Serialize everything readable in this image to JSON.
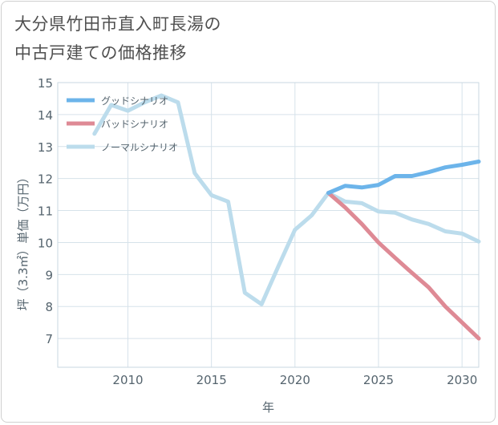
{
  "title_lines": [
    "大分県竹田市直入町長湯の",
    "中古戸建ての価格推移"
  ],
  "chart_data": {
    "type": "line",
    "title": "大分県竹田市直入町長湯の中古戸建ての価格推移",
    "xlabel": "年",
    "ylabel": "坪（3.3㎡）単価（万円）",
    "xlim": [
      2005.8,
      2031
    ],
    "ylim": [
      6.1,
      15
    ],
    "x_ticks": [
      2010,
      2015,
      2020,
      2025,
      2030
    ],
    "y_ticks": [
      7,
      8,
      9,
      10,
      11,
      12,
      13,
      14,
      15
    ],
    "legend_position": "top-left",
    "series": [
      {
        "name": "グッドシナリオ",
        "color": "#6cb4ea",
        "x": [
          2022,
          2023,
          2024,
          2025,
          2026,
          2027,
          2028,
          2029,
          2030,
          2031
        ],
        "values": [
          11.55,
          11.77,
          11.72,
          11.8,
          12.08,
          12.08,
          12.2,
          12.35,
          12.43,
          12.53
        ]
      },
      {
        "name": "バッドシナリオ",
        "color": "#de8a95",
        "x": [
          2022,
          2023,
          2024,
          2025,
          2026,
          2027,
          2028,
          2029,
          2030,
          2031
        ],
        "values": [
          11.55,
          11.1,
          10.58,
          10.0,
          9.52,
          9.05,
          8.6,
          8.0,
          7.5,
          7.0
        ]
      },
      {
        "name": "ノーマルシナリオ",
        "color": "#bcdcec",
        "x": [
          2008,
          2009,
          2010,
          2011,
          2012,
          2013,
          2014,
          2015,
          2016,
          2017,
          2018,
          2019,
          2020,
          2021,
          2022,
          2023,
          2024,
          2025,
          2026,
          2027,
          2028,
          2029,
          2030,
          2031
        ],
        "values": [
          13.4,
          14.3,
          14.12,
          14.38,
          14.6,
          14.38,
          12.17,
          11.48,
          11.28,
          8.43,
          8.07,
          9.25,
          10.4,
          10.85,
          11.55,
          11.28,
          11.23,
          10.97,
          10.93,
          10.72,
          10.58,
          10.35,
          10.28,
          10.03
        ]
      }
    ]
  }
}
